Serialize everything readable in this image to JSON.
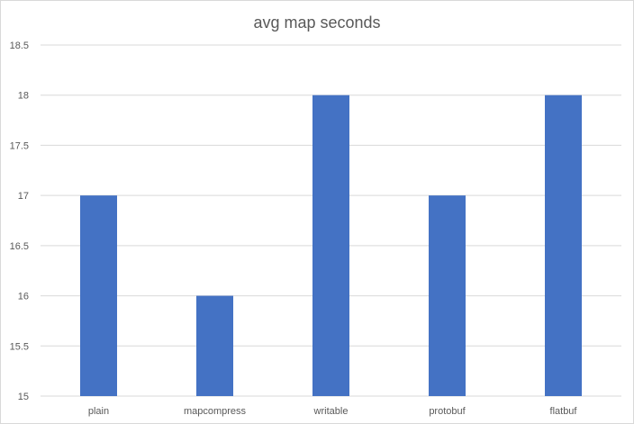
{
  "chart_data": {
    "type": "bar",
    "title": "avg map seconds",
    "xlabel": "",
    "ylabel": "",
    "categories": [
      "plain",
      "mapcompress",
      "writable",
      "protobuf",
      "flatbuf"
    ],
    "values": [
      17,
      16,
      18,
      17,
      18
    ],
    "ylim": [
      15,
      18.5
    ],
    "yticks": [
      "15",
      "15.5",
      "16",
      "16.5",
      "17",
      "17.5",
      "18",
      "18.5"
    ],
    "grid": true,
    "legend": "none",
    "bar_color": "#4472c4"
  }
}
